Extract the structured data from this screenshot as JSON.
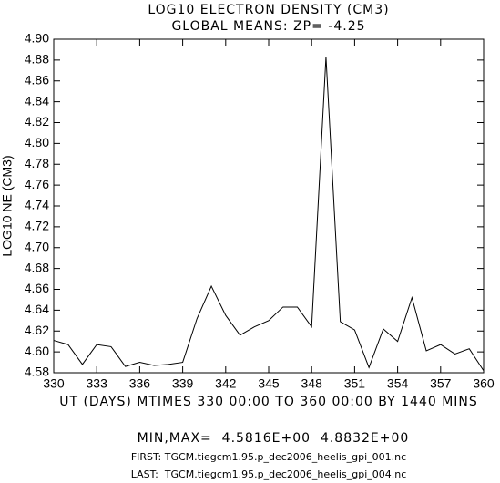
{
  "chart_data": {
    "type": "line",
    "title": "LOG10 ELECTRON DENSITY (CM3)",
    "subtitle": "GLOBAL MEANS: ZP= -4.25",
    "x_label": "UT (DAYS) MTIMES 330 00:00 TO 360 00:00 BY 1440 MINS",
    "y_label": "LOG10 NE (CM3)",
    "annotations": [
      "MIN,MAX=  4.5816E+00  4.8832E+00",
      "FIRST: TGCM.tiegcm1.95.p_dec2006_heelis_gpi_001.nc",
      "LAST:  TGCM.tiegcm1.95.p_dec2006_heelis_gpi_004.nc"
    ],
    "x": [
      330,
      331,
      332,
      333,
      334,
      335,
      336,
      337,
      338,
      339,
      340,
      341,
      342,
      343,
      344,
      345,
      346,
      347,
      348,
      349,
      350,
      351,
      352,
      353,
      354,
      355,
      356,
      357,
      358,
      359,
      360
    ],
    "series": [
      {
        "color": "#000000",
        "values": [
          4.611,
          4.607,
          4.588,
          4.607,
          4.605,
          4.586,
          4.59,
          4.587,
          4.588,
          4.59,
          4.632,
          4.663,
          4.635,
          4.616,
          4.624,
          4.63,
          4.643,
          4.643,
          4.624,
          4.883,
          4.629,
          4.621,
          4.585,
          4.622,
          4.61,
          4.652,
          4.601,
          4.607,
          4.598,
          4.603,
          4.582
        ]
      }
    ],
    "xlim": [
      330,
      360
    ],
    "xticks": [
      330,
      333,
      336,
      339,
      342,
      345,
      348,
      351,
      354,
      357,
      360
    ],
    "ylim": [
      4.58,
      4.9
    ],
    "yticks": [
      4.58,
      {
        "value": 4.6,
        "label": "4.60"
      },
      4.62,
      4.64,
      4.66,
      4.68,
      {
        "value": 4.7,
        "label": "4.70"
      },
      4.72,
      4.74,
      4.76,
      4.78,
      {
        "value": 4.8,
        "label": "4.80"
      },
      4.82,
      4.84,
      4.86,
      4.88,
      {
        "value": 4.9,
        "label": "4.90"
      }
    ],
    "grid": false
  }
}
